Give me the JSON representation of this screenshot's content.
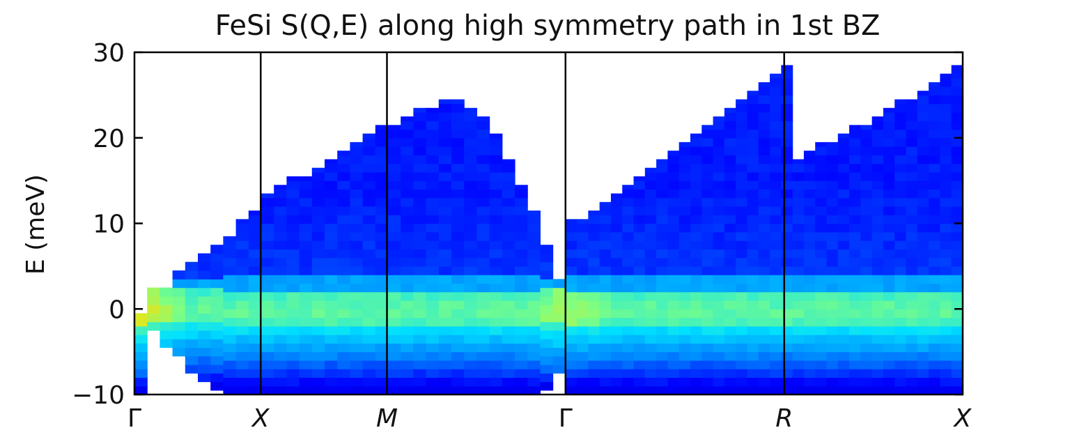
{
  "chart_data": {
    "type": "heatmap",
    "title": "FeSi S(Q,E) along high symmetry path in 1st BZ",
    "xlabel": "",
    "ylabel": "E (meV)",
    "ylim": [
      -10,
      30
    ],
    "yticks": [
      "30",
      "20",
      "10",
      "0",
      "−10"
    ],
    "ytick_values": [
      30,
      20,
      10,
      0,
      -10
    ],
    "energy_bin_meV": 1,
    "colormap": "jet",
    "colormap_stops": [
      "#0000a8",
      "#0000ff",
      "#0080ff",
      "#00e0ff",
      "#80ff80",
      "#ffe000",
      "#ff6000",
      "#a80000"
    ],
    "segment_breaks": [
      {
        "label": "Γ",
        "q": 0
      },
      {
        "label": "X",
        "q": 1
      },
      {
        "label": "M",
        "q": 2
      },
      {
        "label": "Γ",
        "q": 3.414
      },
      {
        "label": "R",
        "q": 5.146
      },
      {
        "label": "X",
        "q": 6.56
      }
    ],
    "series": [
      {
        "path": "Γ-X-M-Γ",
        "q_range": [
          0,
          3.414
        ],
        "q_columns": 34,
        "emax_meV": [
          -0.5,
          2.5,
          2.5,
          4.5,
          5.5,
          6.5,
          7.5,
          8.5,
          10.5,
          11.5,
          13.5,
          14.5,
          15.5,
          15.5,
          16.5,
          17.5,
          18.5,
          19.5,
          20.5,
          21.5,
          21.5,
          22.5,
          23.5,
          23.5,
          24.5,
          24.5,
          23.5,
          22.5,
          20.5,
          17.5,
          14.5,
          11.5,
          7.5,
          3.5
        ],
        "emin_meV": [
          -10,
          -2.5,
          -4.5,
          -5.5,
          -7.5,
          -8.5,
          -9.5,
          -10,
          -10,
          -10,
          -10,
          -10,
          -10,
          -10,
          -10,
          -10,
          -10,
          -10,
          -10,
          -10,
          -10,
          -10,
          -10,
          -10,
          -10,
          -10,
          -10,
          -10,
          -10,
          -10,
          -10,
          -10,
          -9.5,
          -7.5
        ]
      },
      {
        "path": "Γ-R-X",
        "q_range": [
          3.414,
          6.56
        ],
        "q_columns": 35,
        "emax_meV": [
          10.5,
          10.5,
          11.5,
          12.5,
          13.5,
          14.5,
          15.5,
          16.5,
          17.5,
          18.5,
          19.5,
          20.5,
          21.5,
          22.5,
          23.5,
          24.5,
          25.5,
          26.5,
          27.5,
          28.5,
          17.5,
          18.5,
          19.5,
          19.5,
          20.5,
          21.5,
          21.5,
          22.5,
          23.5,
          24.5,
          24.5,
          25.5,
          26.5,
          27.5,
          28.5
        ],
        "emin_meV": [
          -10,
          -10,
          -10,
          -10,
          -10,
          -10,
          -10,
          -10,
          -10,
          -10,
          -10,
          -10,
          -10,
          -10,
          -10,
          -10,
          -10,
          -10,
          -10,
          -10,
          -10,
          -10,
          -10,
          -10,
          -10,
          -10,
          -10,
          -10,
          -10,
          -10,
          -10,
          -10,
          -10,
          -10,
          -10
        ]
      }
    ],
    "notes": [
      {
        "text": "Elastic line near E = 0 meV is brightest (green to yellow), peaking at Γ."
      },
      {
        "text": "Inelastic scattering above ~4 meV is weak (blue)."
      }
    ]
  }
}
